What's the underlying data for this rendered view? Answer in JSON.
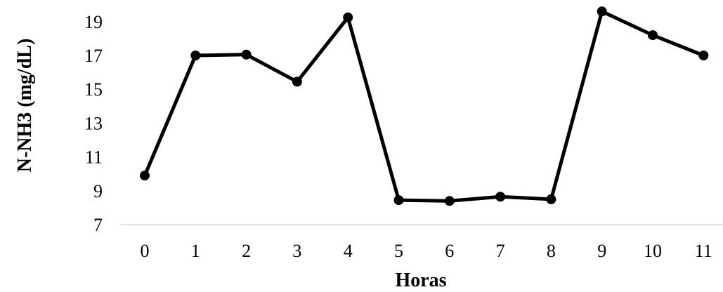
{
  "chart_data": {
    "type": "line",
    "title": "",
    "xlabel": "Horas",
    "ylabel": "N-NH3 (mg/dL)",
    "categories": [
      "0",
      "1",
      "2",
      "3",
      "4",
      "5",
      "6",
      "7",
      "8",
      "9",
      "10",
      "11"
    ],
    "series": [
      {
        "values": [
          9.9,
          17.0,
          17.05,
          15.45,
          19.25,
          8.45,
          8.4,
          8.65,
          8.5,
          19.6,
          18.2,
          17.0
        ]
      }
    ],
    "ylim": [
      7,
      20
    ],
    "yticks": [
      "7",
      "9",
      "11",
      "13",
      "15",
      "17",
      "19"
    ],
    "grid": false,
    "legend": "none",
    "colors": {
      "line": "#000000",
      "marker": "#000000",
      "axis": "#d9d9d9"
    }
  }
}
